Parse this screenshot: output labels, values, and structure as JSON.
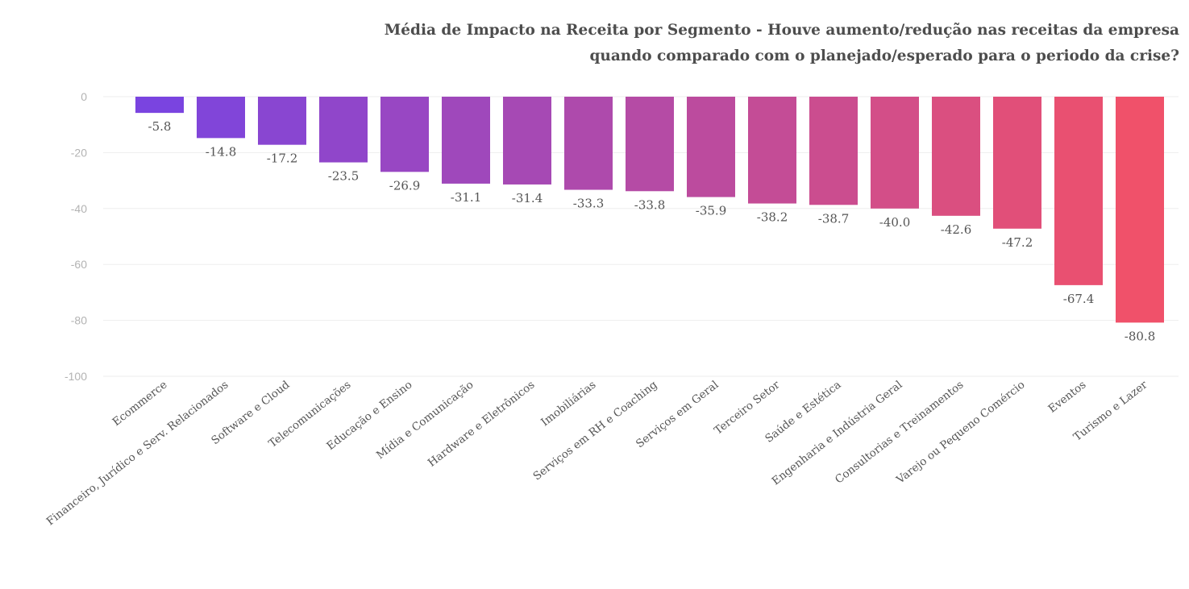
{
  "chart_data": {
    "type": "bar",
    "title_lines": [
      "Média de Impacto na Receita por Segmento - Houve aumento/redução nas receitas da empresa",
      "quando comparado com o planejado/esperado para o periodo da crise?"
    ],
    "categories": [
      "Ecommerce",
      "Financeiro, Jurídico e Serv. Relacionados",
      "Software e Cloud",
      "Telecomunicações",
      "Educação e Ensino",
      "Mídia e Comunicação",
      "Hardware e Eletrônicos",
      "Imobiliárias",
      "Serviços em RH e Coaching",
      "Serviços em Geral",
      "Terceiro Setor",
      "Saúde e Estética",
      "Engenharia e Indústria Geral",
      "Consultorias e Treinamentos",
      "Varejo ou Pequeno Comércio",
      "Eventos",
      "Turismo e Lazer"
    ],
    "values": [
      -5.8,
      -14.8,
      -17.2,
      -23.5,
      -26.9,
      -31.1,
      -31.4,
      -33.3,
      -33.8,
      -35.9,
      -38.2,
      -38.7,
      -40.0,
      -42.6,
      -47.2,
      -67.4,
      -80.8
    ],
    "value_labels": [
      "-5.8",
      "-14.8",
      "-17.2",
      "-23.5",
      "-26.9",
      "-31.1",
      "-31.4",
      "-33.3",
      "-33.8",
      "-35.9",
      "-38.2",
      "-38.7",
      "-40.0",
      "-42.6",
      "-47.2",
      "-67.4",
      "-80.8"
    ],
    "yticks": [
      0,
      -20,
      -40,
      -60,
      -80,
      -100
    ],
    "ylim": [
      -100,
      0
    ],
    "grid": true,
    "legend": "none",
    "colors": {
      "start": "#7a44e0",
      "end": "#f0516a",
      "grid": "#eeeeee",
      "text": "#555555",
      "tick": "#b3b3b3",
      "title": "#4d4d4d"
    }
  }
}
